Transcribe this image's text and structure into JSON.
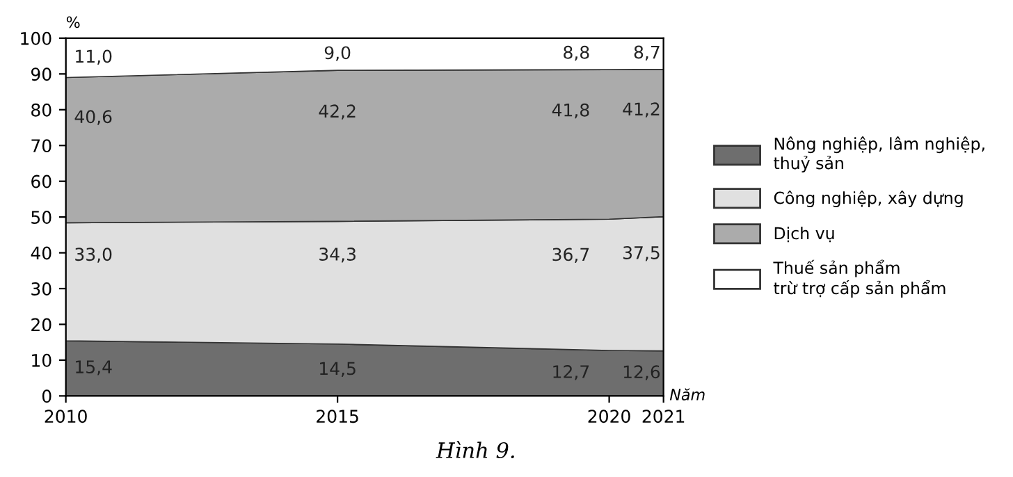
{
  "chart_data": {
    "type": "area",
    "stacked": true,
    "x": [
      2010,
      2015,
      2020,
      2021
    ],
    "series": [
      {
        "name": "Nông nghiệp, lâm nghiệp,\nthuỷ sản",
        "color": "#6e6e6e",
        "values": [
          15.4,
          14.5,
          12.7,
          12.6
        ],
        "value_labels": [
          "15,4",
          "14,5",
          "12,7",
          "12,6"
        ]
      },
      {
        "name": "Công nghiệp, xây dựng",
        "color": "#e0e0e0",
        "values": [
          33.0,
          34.3,
          36.7,
          37.5
        ],
        "value_labels": [
          "33,0",
          "34,3",
          "36,7",
          "37,5"
        ]
      },
      {
        "name": "Dịch vụ",
        "color": "#ababab",
        "values": [
          40.6,
          42.2,
          41.8,
          41.2
        ],
        "value_labels": [
          "40,6",
          "42,2",
          "41,8",
          "41,2"
        ]
      },
      {
        "name": "Thuế sản phẩm\ntrừ trợ cấp sản phẩm",
        "color": "#ffffff",
        "values": [
          11.0,
          9.0,
          8.8,
          8.7
        ],
        "value_labels": [
          "11,0",
          "9,0",
          "8,8",
          "8,7"
        ]
      }
    ],
    "xlim": [
      2010,
      2021
    ],
    "xticks": [
      2010,
      2015,
      2020,
      2021
    ],
    "ylim": [
      0,
      100
    ],
    "yticks": [
      0,
      10,
      20,
      30,
      40,
      50,
      60,
      70,
      80,
      90,
      100
    ],
    "ylabel": "%",
    "xlabel": "Năm",
    "legend": "right",
    "grid": false,
    "annotations": [
      "Hình 9."
    ]
  }
}
